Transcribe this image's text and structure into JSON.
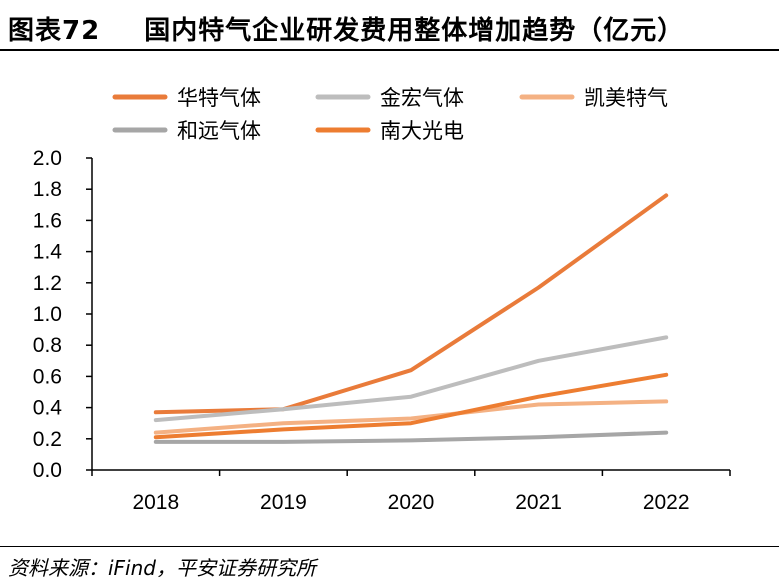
{
  "figure": {
    "number": "图表72",
    "title": "国内特气企业研发费用整体增加趋势（亿元）",
    "source": "资料来源：iFind，平安证券研究所"
  },
  "chart_data": {
    "type": "line",
    "title": "国内特气企业研发费用整体增加趋势（亿元）",
    "unit": "亿元",
    "xlabel": "",
    "ylabel": "",
    "categories": [
      "2018",
      "2019",
      "2020",
      "2021",
      "2022"
    ],
    "ylim": [
      0,
      2.0
    ],
    "yticks": [
      "0.0",
      "0.2",
      "0.4",
      "0.6",
      "0.8",
      "1.0",
      "1.2",
      "1.4",
      "1.6",
      "1.8",
      "2.0"
    ],
    "grid": false,
    "legend_position": "top",
    "series": [
      {
        "name": "华特气体",
        "color": "#E97B3A",
        "values": [
          0.37,
          0.39,
          0.64,
          1.17,
          1.76
        ]
      },
      {
        "name": "金宏气体",
        "color": "#BDBDBD",
        "values": [
          0.32,
          0.39,
          0.47,
          0.7,
          0.85
        ]
      },
      {
        "name": "凯美特气",
        "color": "#F4B183",
        "values": [
          0.24,
          0.3,
          0.33,
          0.42,
          0.44
        ]
      },
      {
        "name": "和远气体",
        "color": "#A6A6A6",
        "values": [
          0.18,
          0.18,
          0.19,
          0.21,
          0.24
        ]
      },
      {
        "name": "南大光电",
        "color": "#ED7D31",
        "values": [
          0.21,
          0.26,
          0.3,
          0.47,
          0.61
        ]
      }
    ]
  }
}
